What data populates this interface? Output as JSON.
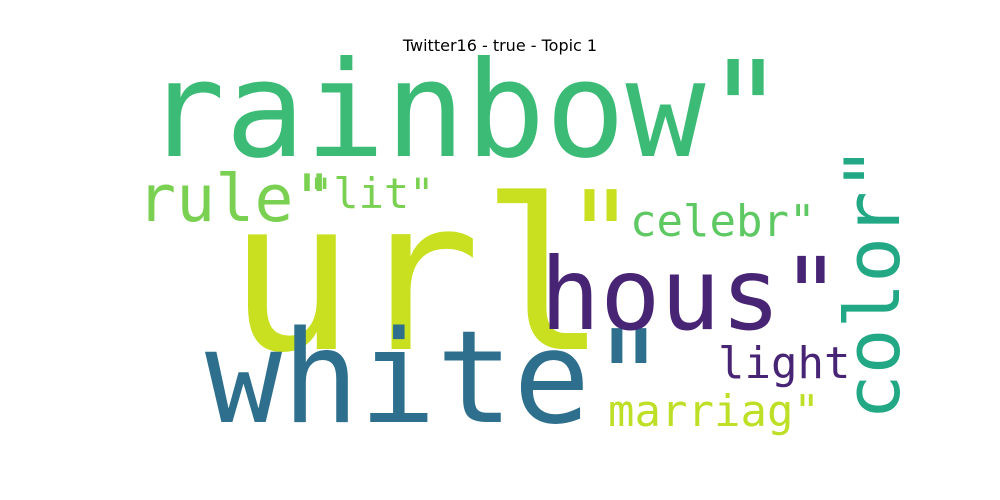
{
  "title": "Twitter16 - true - Topic 1",
  "words": [
    {
      "key": "url",
      "text": "url",
      "color": "#c8e020"
    },
    {
      "key": "rainbow",
      "text": "rainbow\"",
      "color": "#3bbb75"
    },
    {
      "key": "white",
      "text": "white\"",
      "color": "#2e6f8e"
    },
    {
      "key": "quote",
      "text": "\"",
      "color": "#c8e020"
    },
    {
      "key": "hous",
      "text": "hous\"",
      "color": "#482475"
    },
    {
      "key": "color",
      "text": "color\"",
      "color": "#22a884"
    },
    {
      "key": "rule",
      "text": "rule\"",
      "color": "#7ad151"
    },
    {
      "key": "lit",
      "text": "\"lit\"",
      "color": "#7ad151"
    },
    {
      "key": "celebr",
      "text": "celebr\"",
      "color": "#5ec962"
    },
    {
      "key": "light",
      "text": "light",
      "color": "#482475"
    },
    {
      "key": "marriag",
      "text": "marriag\"",
      "color": "#bddf26"
    }
  ]
}
